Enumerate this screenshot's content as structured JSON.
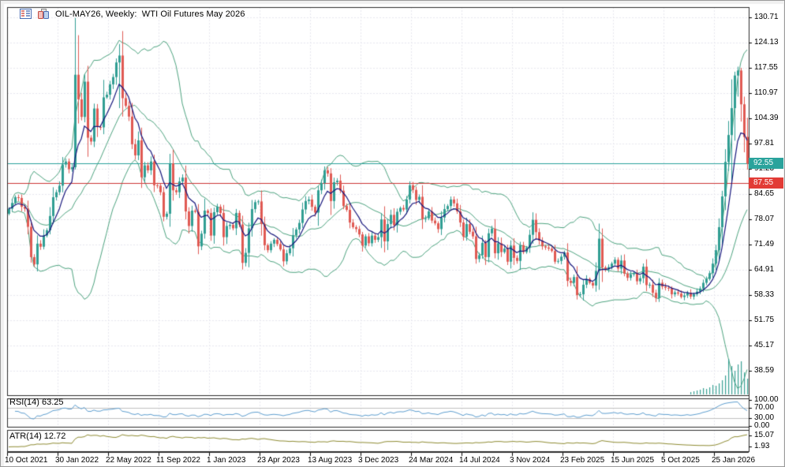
{
  "window": {
    "title": "OIL-MAY26, Weekly:  WTI Oil Futures May 2026"
  },
  "colors": {
    "background": "#ffffff",
    "frame": "#f0f0f0",
    "pane_border": "#2b2b2b",
    "grid": "#e7e7ee",
    "bull": "#319e93",
    "bear": "#e05a53",
    "band": "#4ea480",
    "ma": "#16167d",
    "bid_line": "#29a19c",
    "hline": "#cc3535",
    "bid_label_bg": "#2aa39c",
    "hline_label_bg": "#e23b35",
    "rsi_line": "#5f9fd0",
    "rsi_level": "#c0c0c0",
    "atr_line": "#8f8c33",
    "volume": "#3aa195",
    "text": "#000000"
  },
  "price_axis": {
    "ticks": [
      "130.71",
      "124.13",
      "117.55",
      "110.97",
      "104.39",
      "97.81",
      "91.23",
      "84.65",
      "78.07",
      "71.49",
      "64.91",
      "58.33",
      "51.75",
      "45.17",
      "38.59"
    ],
    "bid_label": "92.55",
    "hline_label": "87.55"
  },
  "date_axis": {
    "labels": [
      "10 Oct 2021",
      "30 Jan 2022",
      "22 May 2022",
      "11 Sep 2022",
      "1 Jan 2023",
      "23 Apr 2023",
      "13 Aug 2023",
      "3 Dec 2023",
      "24 Mar 2024",
      "14 Jul 2024",
      "3 Nov 2024",
      "23 Feb 2025",
      "15 Jun 2025",
      "5 Oct 2025",
      "25 Jan 2026"
    ]
  },
  "indicators": {
    "rsi": {
      "label": "RSI(14) 63.25",
      "axis_labels": [
        "100.00",
        "70.00",
        "30.00",
        "0.00"
      ],
      "levels": [
        100,
        70,
        30,
        0
      ]
    },
    "atr": {
      "label": "ATR(14) 12.72",
      "axis_labels": [
        "15.07",
        "1.93"
      ]
    }
  },
  "chart_data": {
    "type": "candlestick",
    "symbol": "OIL-MAY26",
    "timeframe": "Weekly",
    "title": "WTI Oil Futures May 2026",
    "y_ticks": [
      130.71,
      124.13,
      117.55,
      110.97,
      104.39,
      97.81,
      91.23,
      84.65,
      78.07,
      71.49,
      64.91,
      58.33,
      51.75,
      45.17,
      38.59
    ],
    "bid": 92.55,
    "hline": 87.55,
    "bollinger_period": 20,
    "bollinger_deviation": 2,
    "ma_period": 8,
    "rsi_period": 14,
    "rsi_current": 63.25,
    "atr_period": 14,
    "atr_current": 12.72,
    "closes": [
      80.8,
      82.3,
      83.8,
      83.6,
      81.3,
      80.8,
      76.1,
      68.2,
      66.3,
      71.7,
      70.9,
      73.8,
      75.2,
      78.9,
      83.8,
      85.1,
      86.8,
      92.3,
      93.1,
      91.1,
      91.6,
      115.7,
      109.3,
      104.7,
      113.9,
      99.3,
      98.3,
      106.9,
      102.1,
      102.0,
      109.8,
      110.5,
      113.2,
      115.1,
      118.9,
      120.7,
      109.6,
      107.6,
      104.8,
      97.6,
      94.7,
      98.6,
      89.0,
      92.1,
      90.8,
      93.1,
      86.9,
      86.8,
      85.1,
      78.7,
      79.5,
      92.6,
      85.6,
      85.1,
      87.9,
      88.9,
      80.1,
      76.3,
      80.3,
      80.0,
      71.0,
      74.3,
      80.3,
      79.7,
      73.8,
      79.9,
      81.3,
      79.7,
      73.4,
      76.3,
      76.6,
      75.7,
      79.7,
      76.7,
      66.7,
      69.3,
      75.7,
      80.7,
      82.5,
      82.7,
      76.8,
      71.3,
      70.0,
      71.7,
      72.7,
      71.6,
      70.2,
      67.1,
      69.2,
      70.5,
      73.9,
      75.4,
      77.1,
      80.6,
      82.8,
      83.2,
      81.3,
      79.8,
      85.6,
      87.5,
      90.8,
      90.0,
      82.8,
      87.7,
      88.1,
      85.5,
      81.5,
      80.5,
      77.2,
      76.0,
      75.5,
      74.1,
      71.2,
      73.6,
      71.8,
      73.8,
      72.7,
      73.4,
      78.0,
      72.3,
      76.8,
      79.2,
      76.5,
      80.0,
      81.0,
      80.6,
      83.2,
      86.9,
      85.7,
      83.1,
      83.9,
      78.1,
      78.3,
      80.1,
      77.7,
      77.0,
      75.5,
      78.5,
      80.7,
      81.5,
      83.2,
      82.2,
      80.1,
      77.2,
      73.5,
      76.8,
      74.8,
      73.6,
      67.7,
      68.7,
      71.9,
      68.2,
      74.4,
      75.6,
      69.2,
      71.8,
      69.5,
      70.4,
      67.0,
      71.2,
      68.0,
      67.2,
      71.3,
      69.5,
      70.6,
      74.0,
      77.9,
      74.7,
      72.5,
      71.0,
      70.7,
      70.4,
      69.8,
      67.0,
      67.2,
      68.3,
      69.4,
      62.0,
      61.5,
      63.0,
      58.3,
      58.5,
      61.0,
      62.5,
      61.5,
      60.8,
      64.6,
      73.0,
      65.5,
      65.0,
      65.6,
      66.5,
      67.5,
      65.2,
      67.3,
      63.9,
      62.8,
      63.7,
      64.0,
      61.9,
      62.7,
      65.7,
      60.9,
      61.0,
      58.9,
      57.5,
      61.5,
      60.5,
      60.2,
      60.0,
      58.5,
      59.0,
      58.7,
      57.8,
      58.2,
      58.9,
      57.9,
      58.5,
      59.2,
      60.0,
      61.5,
      62.5,
      64.0,
      66.5,
      70.0,
      76.0,
      84.0,
      93.0,
      100.0,
      107.0,
      115.5,
      116.8,
      108.0,
      99.5,
      92.55
    ],
    "wick_overrides": {
      "21": [
        130.5,
        91.0
      ],
      "22": [
        126.0,
        103.0
      ],
      "35": [
        123.7,
        107.0
      ],
      "229": [
        114.5,
        88.0
      ],
      "230": [
        116.5,
        98.5
      ],
      "231": [
        117.8,
        110.0
      ],
      "232": [
        117.5,
        103.5
      ],
      "233": [
        110.0,
        95.5
      ],
      "234": [
        104.5,
        91.0
      ]
    },
    "volume_recent": {
      "start_index": 216,
      "heights": [
        3,
        4,
        5,
        6,
        8,
        7,
        9,
        12,
        11,
        14,
        18,
        24,
        45,
        36,
        30,
        38,
        42,
        28,
        20
      ]
    }
  }
}
